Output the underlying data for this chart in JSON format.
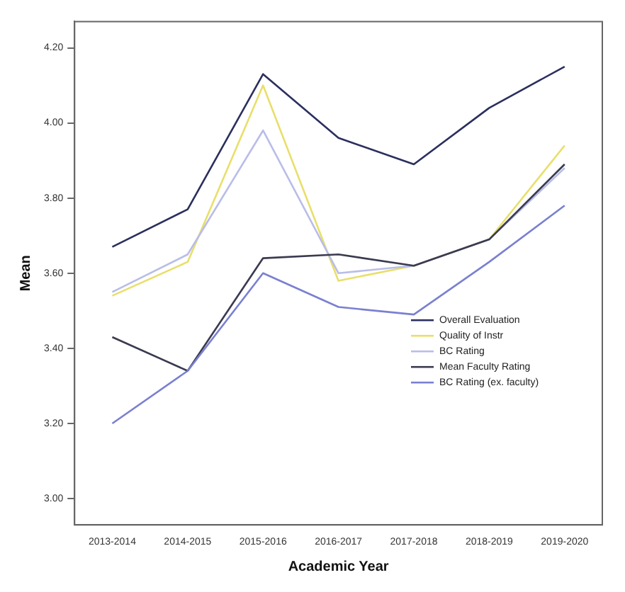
{
  "chart_data": {
    "type": "line",
    "xlabel": "Academic Year",
    "ylabel": "Mean",
    "categories": [
      "2013-2014",
      "2014-2015",
      "2015-2016",
      "2016-2017",
      "2017-2018",
      "2018-2019",
      "2019-2020"
    ],
    "series": [
      {
        "name": "Overall Evaluation",
        "color": "#2b2f5e",
        "values": [
          3.67,
          3.77,
          4.13,
          3.96,
          3.89,
          4.04,
          4.15
        ]
      },
      {
        "name": "Quality of Instr",
        "color": "#e8df6a",
        "values": [
          3.54,
          3.63,
          4.1,
          3.58,
          3.62,
          3.69,
          3.94
        ]
      },
      {
        "name": "BC Rating",
        "color": "#b9bde8",
        "values": [
          3.55,
          3.65,
          3.98,
          3.6,
          3.62,
          3.69,
          3.88
        ]
      },
      {
        "name": "Mean Faculty Rating",
        "color": "#3a3a50",
        "values": [
          3.43,
          3.34,
          3.64,
          3.65,
          3.62,
          3.69,
          3.89
        ]
      },
      {
        "name": "BC Rating (ex. faculty)",
        "color": "#7a80d0",
        "values": [
          3.2,
          3.34,
          3.6,
          3.51,
          3.49,
          3.63,
          3.78
        ]
      }
    ],
    "ylim": [
      2.93,
      4.27
    ],
    "yticks": [
      {
        "value": 3.0,
        "label": "3.00"
      },
      {
        "value": 3.2,
        "label": "3.20"
      },
      {
        "value": 3.4,
        "label": "3.40"
      },
      {
        "value": 3.6,
        "label": "3.60"
      },
      {
        "value": 3.8,
        "label": "3.80"
      },
      {
        "value": 4.0,
        "label": "4.00"
      },
      {
        "value": 4.2,
        "label": "4.20"
      }
    ],
    "grid": false,
    "legend": "bottom right",
    "marker": "none",
    "line_style": "solid"
  }
}
